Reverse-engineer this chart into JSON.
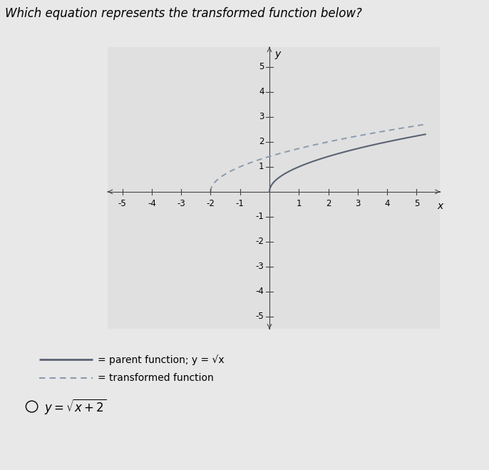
{
  "title": "Which equation represents the transformed function below?",
  "title_fontsize": 12,
  "xlim": [
    -5.5,
    5.8
  ],
  "ylim": [
    -5.5,
    5.8
  ],
  "xticks": [
    -5,
    -4,
    -3,
    -2,
    -1,
    1,
    2,
    3,
    4,
    5
  ],
  "yticks": [
    -5,
    -4,
    -3,
    -2,
    -1,
    1,
    2,
    3,
    4,
    5
  ],
  "xlabel": "x",
  "ylabel": "y",
  "parent_color": "#5a6272",
  "transformed_color": "#8a9ab0",
  "background_color": "#e8e8e8",
  "plot_bg_color": "#e0e0e0",
  "legend_parent": "= parent function; y = √x",
  "legend_transformed": "= transformed function",
  "axis_color": "#444444",
  "tick_color": "#444444"
}
